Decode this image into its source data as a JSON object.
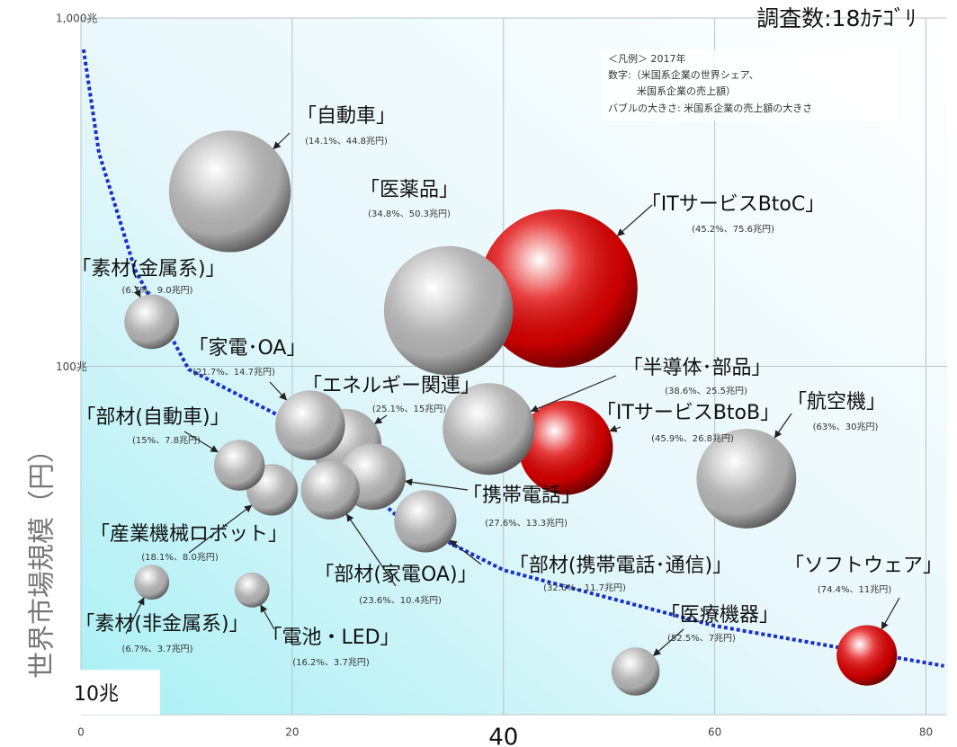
{
  "chart_data": {
    "type": "bubble",
    "title": "調査数:18ｶﾃｺﾞﾘ",
    "y_label": "世界市場規模（円）",
    "legend_text": [
      "＜凡例＞ 2017年",
      "数字:（米国系企業の世界シェア、",
      "米国系企業の売上額）",
      "バブルの大きさ: 米国系企業の売上額の大きさ"
    ],
    "xlim": [
      0,
      82
    ],
    "xticks": [
      0,
      20,
      40,
      60,
      80
    ],
    "ylim": [
      10,
      1000
    ],
    "log_y": true,
    "yticks": [
      {
        "value": 10,
        "label": "10兆"
      },
      {
        "value": 100,
        "label": "100兆"
      },
      {
        "value": 1000,
        "label": "1,000兆"
      }
    ],
    "grid": true,
    "series": [
      {
        "labels": [
          "｢自動車｣",
          "｢医薬品｣",
          "｢ITサービスBtoC｣",
          "｢素材(金属系)｣",
          "｢家電･OA｣",
          "｢エネルギー関連｣",
          "｢半導体･部品｣",
          "｢ITサービスBtoB｣",
          "｢航空機｣",
          "｢部材(自動車)｣",
          "｢携帯電話｣",
          "｢部材(家電OA)｣",
          "｢産業機械ロボット｣",
          "｢部材(携帯電話･通信)｣",
          "｢ソフトウェア｣",
          "｢医療機器｣",
          "｢素材(非金属系)｣",
          "｢電池・LED｣"
        ],
        "value_labels": [
          "(14.1%、44.8兆円)",
          "(34.8%、50.3兆円)",
          "(45.2%、75.6兆円)",
          "(6.7%、9.0兆円)",
          "(21.7%、14.7兆円)",
          "(25.1%、15兆円)",
          "(38.6%、25.5兆円)",
          "(45.9%、26.8兆円)",
          "(63%、30兆円)",
          "(15%、7.8兆円)",
          "(27.6%、13.3兆円)",
          "(23.6%、10.4兆円)",
          "(18.1%、8.0兆円)",
          "(32.6%、11.7兆円)",
          "(74.4%、11兆円)",
          "(52.5%、7兆円)",
          "(6.7%、3.7兆円)",
          "(16.2%、3.7兆円)"
        ],
        "x": [
          14.1,
          34.8,
          45.2,
          6.7,
          21.7,
          25.1,
          38.6,
          45.9,
          63,
          15,
          27.6,
          23.6,
          18.1,
          32.6,
          74.4,
          52.5,
          6.7,
          16.2
        ],
        "values": [
          318,
          144.5,
          167.3,
          134.3,
          67.7,
          59.8,
          66.1,
          58.4,
          47.6,
          52,
          48.2,
          44.1,
          44.2,
          35.9,
          14.8,
          13.3,
          24,
          22.8
        ],
        "sizes": [
          44.8,
          50.3,
          75.6,
          9.0,
          14.7,
          15,
          25.5,
          26.8,
          30,
          7.8,
          13.3,
          10.4,
          8.0,
          11.7,
          11,
          7,
          3.7,
          3.7
        ],
        "colors": [
          "#bdbdbd",
          "#bdbdbd",
          "#e00000",
          "#bdbdbd",
          "#bdbdbd",
          "#bdbdbd",
          "#bdbdbd",
          "#e00000",
          "#bdbdbd",
          "#bdbdbd",
          "#bdbdbd",
          "#bdbdbd",
          "#bdbdbd",
          "#bdbdbd",
          "#e00000",
          "#bdbdbd",
          "#bdbdbd",
          "#bdbdbd"
        ]
      }
    ],
    "curve": {
      "color": "#1a2fc8",
      "x": [
        0.25,
        1.7,
        5.1,
        10.2,
        20,
        30,
        40,
        60,
        81.7
      ],
      "values": [
        812,
        410,
        190,
        98,
        69,
        37,
        26,
        18,
        13.8
      ]
    }
  }
}
